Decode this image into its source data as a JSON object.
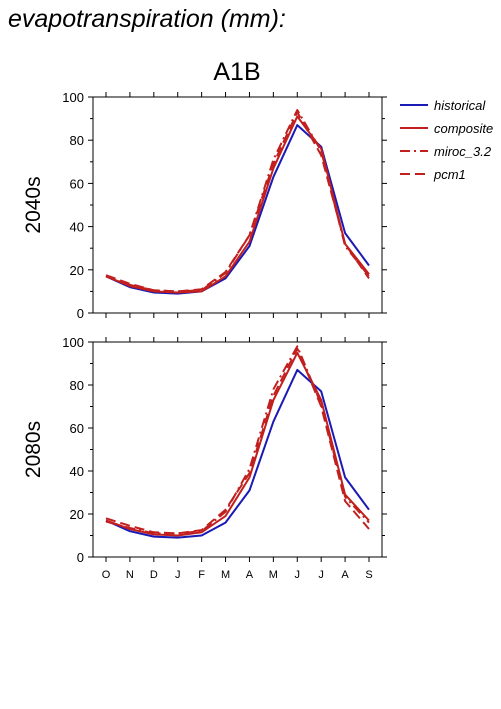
{
  "figure_title": "evapotranspiration (mm):",
  "scenario": "A1B",
  "colors": {
    "historical": "#1a1ab4",
    "model": "#c21f1f"
  },
  "chart_data": [
    {
      "type": "line",
      "row_label": "2040s",
      "categories": [
        "O",
        "N",
        "D",
        "J",
        "F",
        "M",
        "A",
        "M",
        "J",
        "J",
        "A",
        "S"
      ],
      "ylim": [
        0,
        100
      ],
      "yticks": [
        "0",
        "20",
        "40",
        "60",
        "80",
        "100"
      ],
      "grid": false,
      "legend": "right",
      "series": [
        {
          "name": "historical",
          "style": "solid",
          "color": "#1a1ab4",
          "values": [
            17,
            12,
            9.5,
            9,
            10,
            16,
            31,
            63,
            87,
            77,
            37,
            22
          ]
        },
        {
          "name": "composite",
          "style": "solid",
          "color": "#c21f1f",
          "values": [
            17,
            12.5,
            10,
            9.5,
            10,
            17,
            33,
            67,
            91,
            76,
            32,
            18
          ]
        },
        {
          "name": "miroc_3.2",
          "style": "dashdot",
          "color": "#c21f1f",
          "values": [
            17,
            13,
            10.5,
            10,
            10.5,
            18.5,
            36,
            71,
            94,
            75,
            31,
            17
          ]
        },
        {
          "name": "pcm1",
          "style": "dashed",
          "color": "#c21f1f",
          "values": [
            17.5,
            13.5,
            10.5,
            10,
            11,
            19,
            36,
            69,
            93,
            73,
            32,
            16
          ]
        }
      ]
    },
    {
      "type": "line",
      "row_label": "2080s",
      "categories": [
        "O",
        "N",
        "D",
        "J",
        "F",
        "M",
        "A",
        "M",
        "J",
        "J",
        "A",
        "S"
      ],
      "ylim": [
        0,
        100
      ],
      "yticks": [
        "0",
        "20",
        "40",
        "60",
        "80",
        "100"
      ],
      "grid": false,
      "series": [
        {
          "name": "historical",
          "style": "solid",
          "color": "#1a1ab4",
          "values": [
            17,
            12,
            9.5,
            9,
            10,
            16,
            31,
            63,
            87,
            77,
            37,
            22
          ]
        },
        {
          "name": "composite",
          "style": "solid",
          "color": "#c21f1f",
          "values": [
            17,
            13,
            10.5,
            10,
            11.5,
            19,
            37,
            73,
            95,
            73,
            29,
            17
          ]
        },
        {
          "name": "miroc_3.2",
          "style": "dashdot",
          "color": "#c21f1f",
          "values": [
            16.5,
            13.5,
            11,
            11,
            12,
            21,
            41,
            78,
            98,
            71,
            28,
            16
          ]
        },
        {
          "name": "pcm1",
          "style": "dashed",
          "color": "#c21f1f",
          "values": [
            18,
            14.5,
            11.5,
            11,
            12.5,
            22,
            39,
            75,
            97,
            70,
            26,
            13
          ]
        }
      ]
    }
  ]
}
